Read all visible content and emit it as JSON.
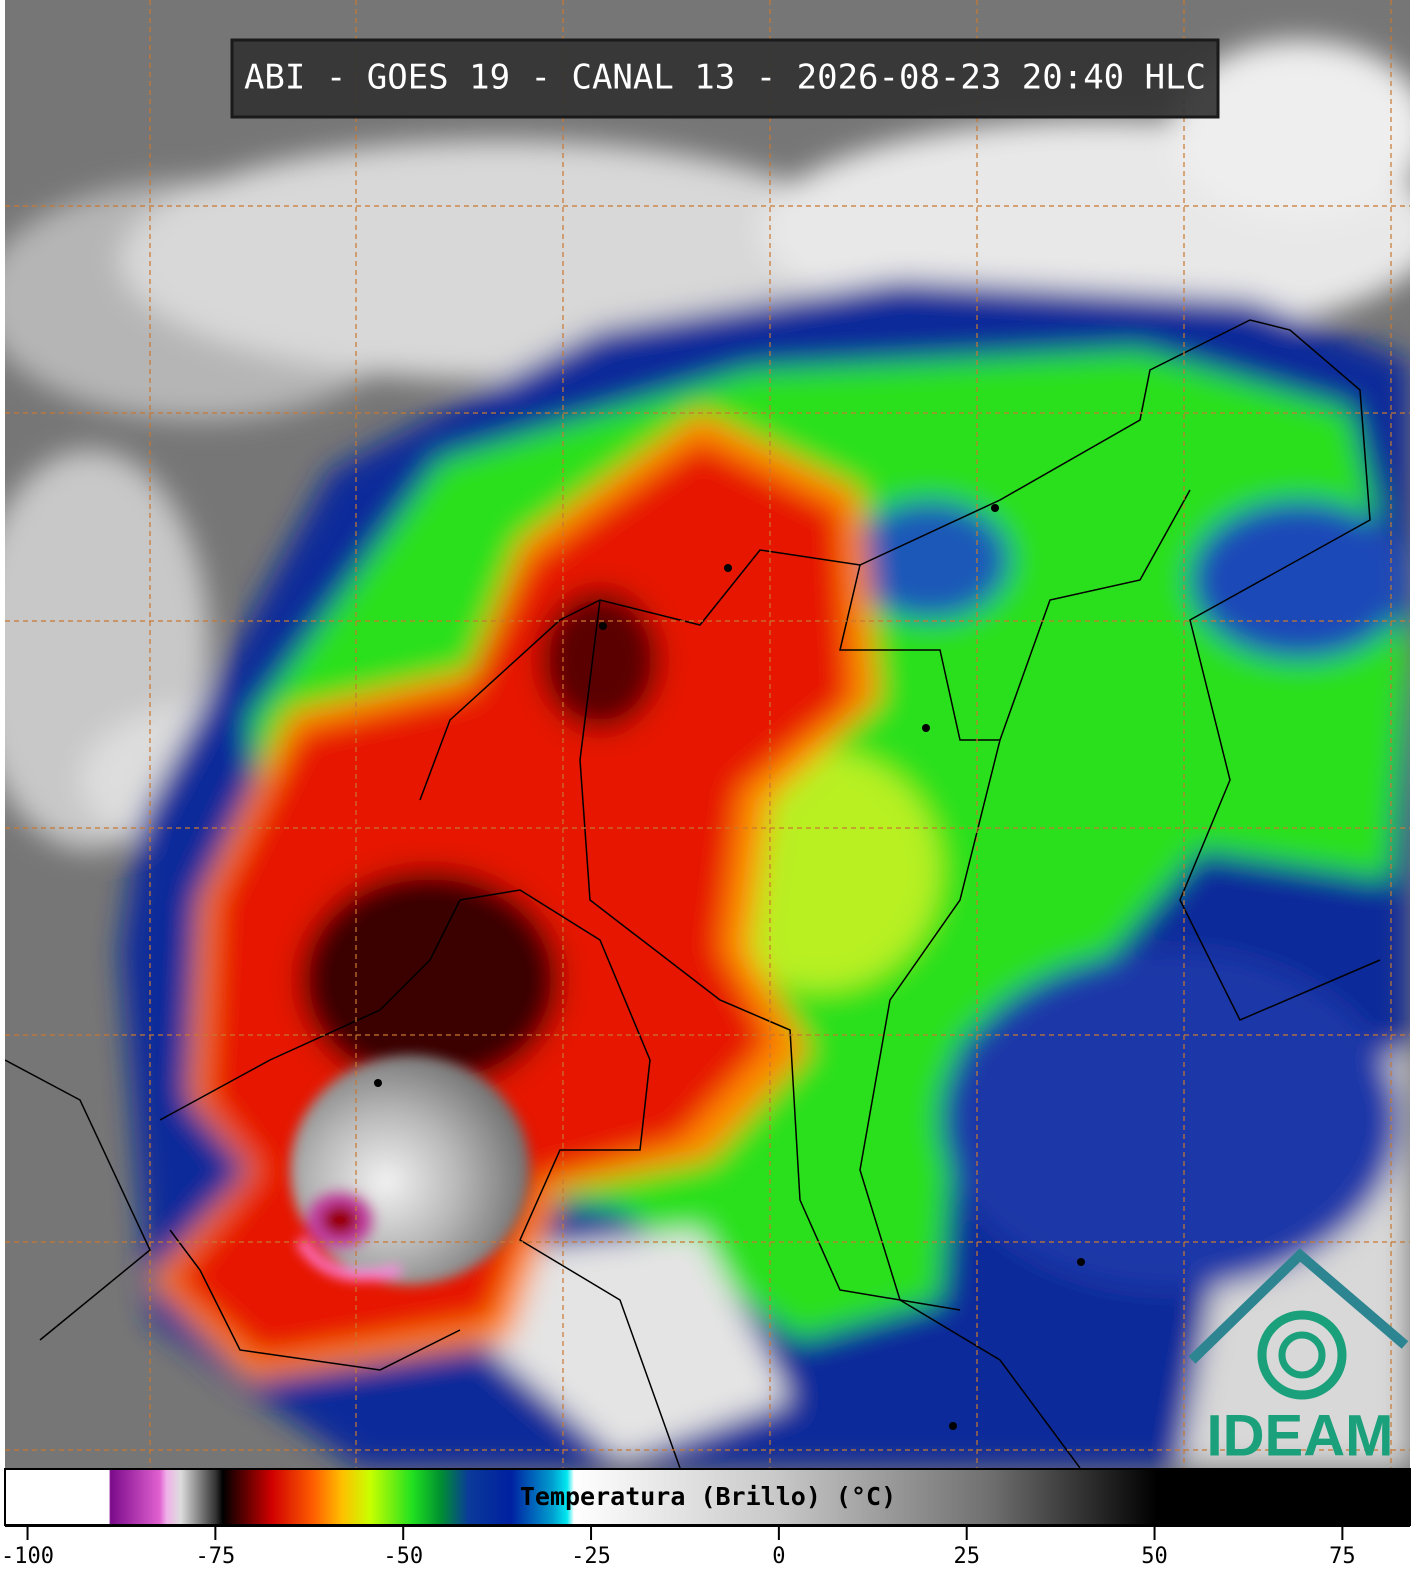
{
  "header": {
    "title": "ABI - GOES 19 - CANAL 13 - 2026-08-23 20:40 HLC"
  },
  "colorbar": {
    "label": "Temperatura (Brillo) (°C)",
    "range": [
      -103,
      84
    ],
    "ticks": [
      -100,
      -75,
      -50,
      -25,
      0,
      25,
      50,
      75
    ]
  },
  "logo": {
    "text": "IDEAM"
  }
}
